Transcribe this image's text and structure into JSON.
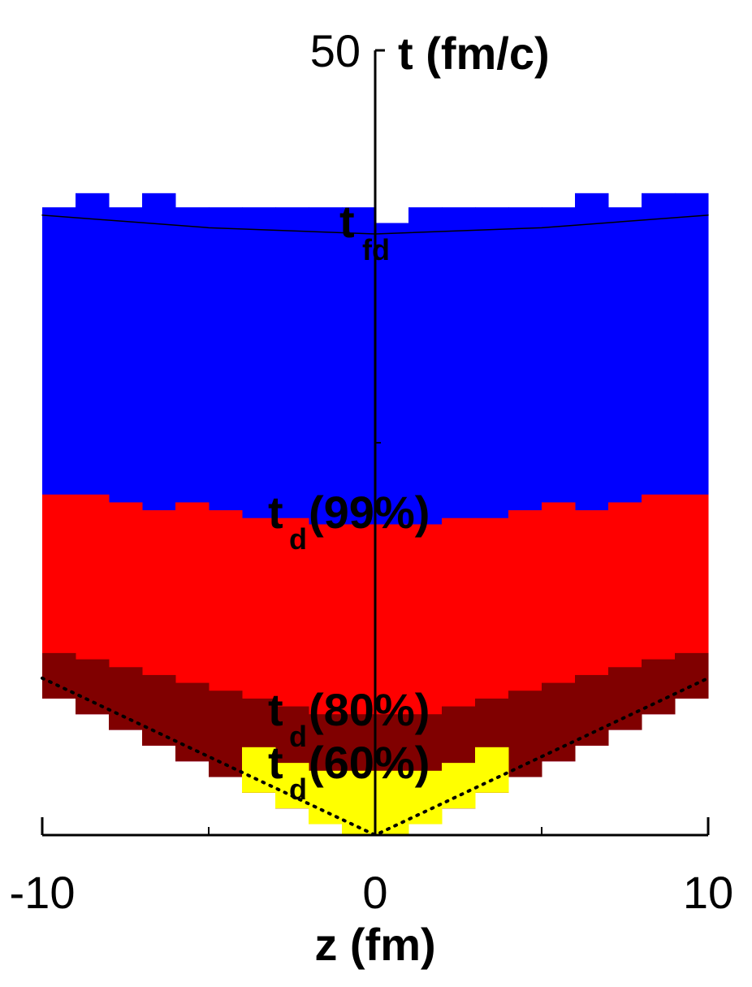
{
  "chart_data": {
    "type": "region",
    "xlabel": "z (fm)",
    "ylabel": "t (fm/c)",
    "xlim": [
      -10,
      10
    ],
    "ylim": [
      0,
      50
    ],
    "xticks": [
      -10,
      0,
      10
    ],
    "xminorticks": [
      -5,
      5
    ],
    "yticks": [
      50
    ],
    "yminorticks": [
      25
    ],
    "x": [
      -9.5,
      -8.5,
      -7.5,
      -6.5,
      -5.5,
      -4.5,
      -3.5,
      -2.5,
      -1.5,
      -0.5,
      0.5,
      1.5,
      2.5,
      3.5,
      4.5,
      5.5,
      6.5,
      7.5,
      8.5,
      9.5
    ],
    "lower": [
      8.7,
      7.7,
      6.7,
      5.7,
      4.7,
      3.7,
      2.7,
      1.7,
      0.7,
      0,
      0,
      0.7,
      1.7,
      2.7,
      3.7,
      4.7,
      5.7,
      6.7,
      7.7,
      8.7
    ],
    "series": [
      {
        "color": "#0000ff",
        "values": [
          40,
          40.9,
          40,
          40.9,
          40,
          40,
          40,
          40,
          40,
          40,
          39,
          40,
          40,
          40,
          40,
          40,
          40.9,
          40,
          40.9,
          40.9
        ]
      },
      {
        "color": "#ff0000",
        "values": [
          21.7,
          21.7,
          21.2,
          20.7,
          21.2,
          20.7,
          20.2,
          20.2,
          19.8,
          19.8,
          19.8,
          19.8,
          20.2,
          20.2,
          20.7,
          21.2,
          20.7,
          21.2,
          21.7,
          21.7
        ]
      },
      {
        "color": "#800000",
        "values": [
          11.6,
          11.2,
          10.7,
          10.2,
          9.7,
          9.2,
          8.7,
          8.2,
          7.7,
          7.7,
          7.7,
          7.7,
          8.2,
          8.7,
          9.2,
          9.7,
          10.2,
          10.7,
          11.2,
          11.6
        ]
      },
      {
        "color": "#ffff00",
        "values": [
          null,
          null,
          null,
          null,
          null,
          null,
          5.6,
          4.6,
          4.1,
          4.1,
          4.1,
          4.1,
          4.6,
          5.6,
          null,
          null,
          null,
          null,
          null,
          null
        ]
      }
    ],
    "lines": [
      {
        "style": "solid",
        "x": [
          -10,
          -5,
          0,
          5,
          10
        ],
        "values": [
          39.5,
          38.7,
          38.3,
          38.7,
          39.5
        ]
      },
      {
        "style": "dotted",
        "x": [
          -10,
          0,
          10
        ],
        "values": [
          10,
          0,
          10
        ]
      }
    ],
    "annotations": [
      {
        "text": "t",
        "subscript": "fd"
      },
      {
        "text": "t",
        "subscript": "d",
        "suffix": "(99%)"
      },
      {
        "text": "t",
        "subscript": "d",
        "suffix": "(80%)"
      },
      {
        "text": "t",
        "subscript": "d",
        "suffix": "(60%)"
      }
    ]
  }
}
